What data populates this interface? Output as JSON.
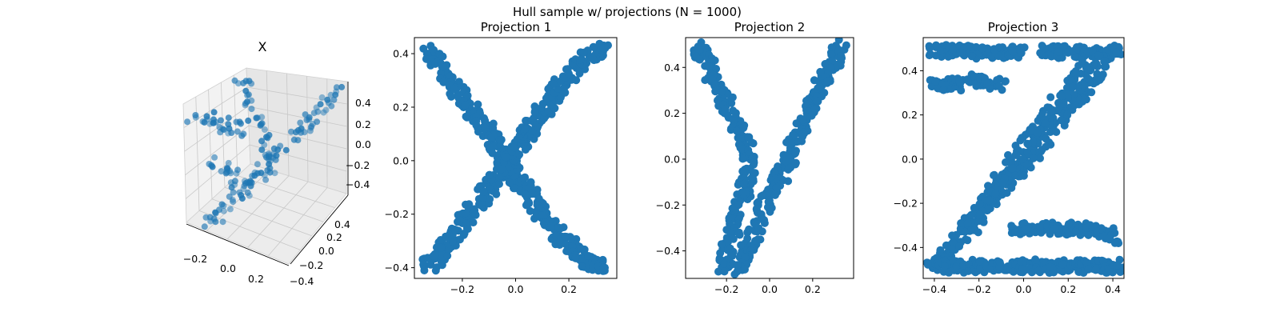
{
  "figure": {
    "suptitle": "Hull sample w/ projections (N = 1000)",
    "marker_color": "#1f77b4"
  },
  "chart_data": [
    {
      "type": "scatter",
      "title": "X",
      "projection": "3d",
      "x_ticks": [
        "−0.2",
        "0.0",
        "0.2"
      ],
      "y_ticks": [
        "0.4",
        "0.2",
        "0.0",
        "−0.2",
        "−0.4"
      ],
      "z_ticks": [
        "0.4",
        "0.2",
        "0.0",
        "−0.2",
        "−0.4"
      ],
      "grid": true
    },
    {
      "type": "scatter",
      "title": "Projection 1",
      "shape": "X",
      "xlim": [
        -0.38,
        0.38
      ],
      "ylim": [
        -0.44,
        0.46
      ],
      "x_ticks": [
        -0.2,
        0.0,
        0.2
      ],
      "x_tick_labels": [
        "−0.2",
        "0.0",
        "0.2"
      ],
      "y_ticks": [
        0.4,
        0.2,
        0.0,
        -0.2,
        -0.4
      ],
      "y_tick_labels": [
        "0.4",
        "0.2",
        "0.0",
        "−0.2",
        "−0.4"
      ],
      "series": [
        {
          "x": [
            -0.33,
            -0.3,
            -0.27,
            -0.24,
            -0.21,
            -0.18,
            -0.15,
            -0.12,
            -0.1,
            -0.08,
            -0.06,
            -0.04,
            -0.02,
            0.0,
            0.02,
            0.04,
            0.06,
            0.08,
            0.1,
            0.13,
            0.16,
            0.19,
            0.22,
            0.25,
            0.28,
            0.31,
            0.33
          ],
          "y": [
            0.41,
            0.37,
            0.33,
            0.29,
            0.25,
            0.21,
            0.17,
            0.13,
            0.1,
            0.07,
            0.04,
            0.01,
            -0.02,
            -0.05,
            -0.08,
            -0.11,
            -0.14,
            -0.17,
            -0.2,
            -0.24,
            -0.28,
            -0.31,
            -0.34,
            -0.37,
            -0.38,
            -0.39,
            -0.4
          ]
        },
        {
          "x": [
            -0.33,
            -0.3,
            -0.27,
            -0.24,
            -0.21,
            -0.18,
            -0.15,
            -0.12,
            -0.09,
            -0.06,
            -0.04,
            -0.02,
            0.0,
            0.02,
            0.04,
            0.06,
            0.09,
            0.12,
            0.15,
            0.18,
            0.21,
            0.24,
            0.27,
            0.3,
            0.33
          ],
          "y": [
            -0.4,
            -0.37,
            -0.33,
            -0.29,
            -0.25,
            -0.21,
            -0.17,
            -0.13,
            -0.09,
            -0.05,
            -0.02,
            0.01,
            0.04,
            0.07,
            0.1,
            0.13,
            0.17,
            0.21,
            0.25,
            0.29,
            0.33,
            0.36,
            0.39,
            0.41,
            0.42
          ]
        }
      ]
    },
    {
      "type": "scatter",
      "title": "Projection 2",
      "shape": "Y",
      "xlim": [
        -0.39,
        0.39
      ],
      "ylim": [
        -0.52,
        0.53
      ],
      "x_ticks": [
        -0.2,
        0.0,
        0.2
      ],
      "x_tick_labels": [
        "−0.2",
        "0.0",
        "0.2"
      ],
      "y_ticks": [
        0.4,
        0.2,
        0.0,
        -0.2,
        -0.4
      ],
      "y_tick_labels": [
        "0.4",
        "0.2",
        "0.0",
        "−0.2",
        "−0.4"
      ],
      "series": [
        {
          "x": [
            -0.34,
            -0.31,
            -0.28,
            -0.25,
            -0.22,
            -0.19,
            -0.16,
            -0.13,
            -0.11,
            -0.09
          ],
          "y": [
            0.5,
            0.45,
            0.4,
            0.34,
            0.28,
            0.22,
            0.16,
            0.1,
            0.05,
            0.0
          ]
        },
        {
          "x": [
            0.34,
            0.31,
            0.28,
            0.25,
            0.22,
            0.19,
            0.16,
            0.13,
            0.11,
            0.09,
            0.06,
            0.03,
            0.0
          ],
          "y": [
            0.5,
            0.45,
            0.4,
            0.34,
            0.28,
            0.22,
            0.16,
            0.1,
            0.05,
            0.0,
            -0.06,
            -0.11,
            -0.16
          ]
        },
        {
          "x": [
            -0.09,
            -0.1,
            -0.12,
            -0.14,
            -0.16,
            -0.18,
            -0.2,
            -0.21
          ],
          "y": [
            0.0,
            -0.07,
            -0.14,
            -0.21,
            -0.28,
            -0.35,
            -0.42,
            -0.49
          ]
        },
        {
          "x": [
            0.0,
            -0.03,
            -0.06,
            -0.09,
            -0.12,
            -0.15
          ],
          "y": [
            -0.16,
            -0.22,
            -0.29,
            -0.36,
            -0.43,
            -0.49
          ]
        }
      ]
    },
    {
      "type": "scatter",
      "title": "Projection 3",
      "shape": "Z",
      "xlim": [
        -0.45,
        0.45
      ],
      "ylim": [
        -0.54,
        0.55
      ],
      "x_ticks": [
        -0.4,
        -0.2,
        0.0,
        0.2,
        0.4
      ],
      "x_tick_labels": [
        "−0.4",
        "−0.2",
        "0.0",
        "0.2",
        "0.4"
      ],
      "y_ticks": [
        0.4,
        0.2,
        0.0,
        -0.2,
        -0.4
      ],
      "y_tick_labels": [
        "0.4",
        "0.2",
        "0.0",
        "−0.2",
        "−0.4"
      ],
      "series": [
        {
          "x": [
            -0.41,
            -0.36,
            -0.31,
            -0.26,
            -0.21,
            -0.16,
            -0.11,
            -0.06,
            -0.01
          ],
          "y": [
            0.49,
            0.49,
            0.48,
            0.49,
            0.48,
            0.49,
            0.48,
            0.49,
            0.48
          ]
        },
        {
          "x": [
            -0.41,
            -0.36,
            -0.31,
            -0.26,
            -0.21,
            -0.16,
            -0.11
          ],
          "y": [
            0.33,
            0.34,
            0.33,
            0.35,
            0.36,
            0.35,
            0.33
          ]
        },
        {
          "x": [
            0.08,
            0.14,
            0.2,
            0.26,
            0.32,
            0.37,
            0.41
          ],
          "y": [
            0.49,
            0.48,
            0.49,
            0.48,
            0.49,
            0.48,
            0.49
          ]
        },
        {
          "x": [
            0.41,
            0.36,
            0.31,
            0.26,
            0.21,
            0.16,
            0.11,
            0.06,
            0.01,
            -0.04,
            -0.09,
            -0.14,
            -0.19,
            -0.24,
            -0.29,
            -0.34,
            -0.39
          ],
          "y": [
            0.49,
            0.43,
            0.37,
            0.3,
            0.24,
            0.18,
            0.12,
            0.05,
            -0.01,
            -0.07,
            -0.13,
            -0.19,
            -0.25,
            -0.31,
            -0.37,
            -0.43,
            -0.48
          ]
        },
        {
          "x": [
            0.3,
            0.25,
            0.2,
            0.15,
            0.1,
            0.05,
            0.0,
            -0.05,
            -0.1,
            -0.15,
            -0.2,
            -0.25
          ],
          "y": [
            0.45,
            0.38,
            0.31,
            0.25,
            0.18,
            0.12,
            0.05,
            -0.02,
            -0.09,
            -0.16,
            -0.22,
            -0.29
          ]
        },
        {
          "x": [
            -0.41,
            -0.36,
            -0.31,
            -0.26,
            -0.21,
            -0.16,
            -0.11,
            -0.06,
            -0.01,
            0.04,
            0.09,
            0.14,
            0.19,
            0.24,
            0.29,
            0.34,
            0.39,
            0.42
          ],
          "y": [
            -0.49,
            -0.48,
            -0.49,
            -0.48,
            -0.49,
            -0.48,
            -0.49,
            -0.48,
            -0.49,
            -0.48,
            -0.49,
            -0.48,
            -0.49,
            -0.48,
            -0.49,
            -0.48,
            -0.49,
            -0.48
          ]
        },
        {
          "x": [
            -0.04,
            0.02,
            0.08,
            0.14,
            0.2,
            0.26,
            0.32,
            0.38,
            0.41
          ],
          "y": [
            -0.31,
            -0.32,
            -0.31,
            -0.32,
            -0.31,
            -0.32,
            -0.31,
            -0.33,
            -0.38
          ]
        }
      ]
    }
  ]
}
